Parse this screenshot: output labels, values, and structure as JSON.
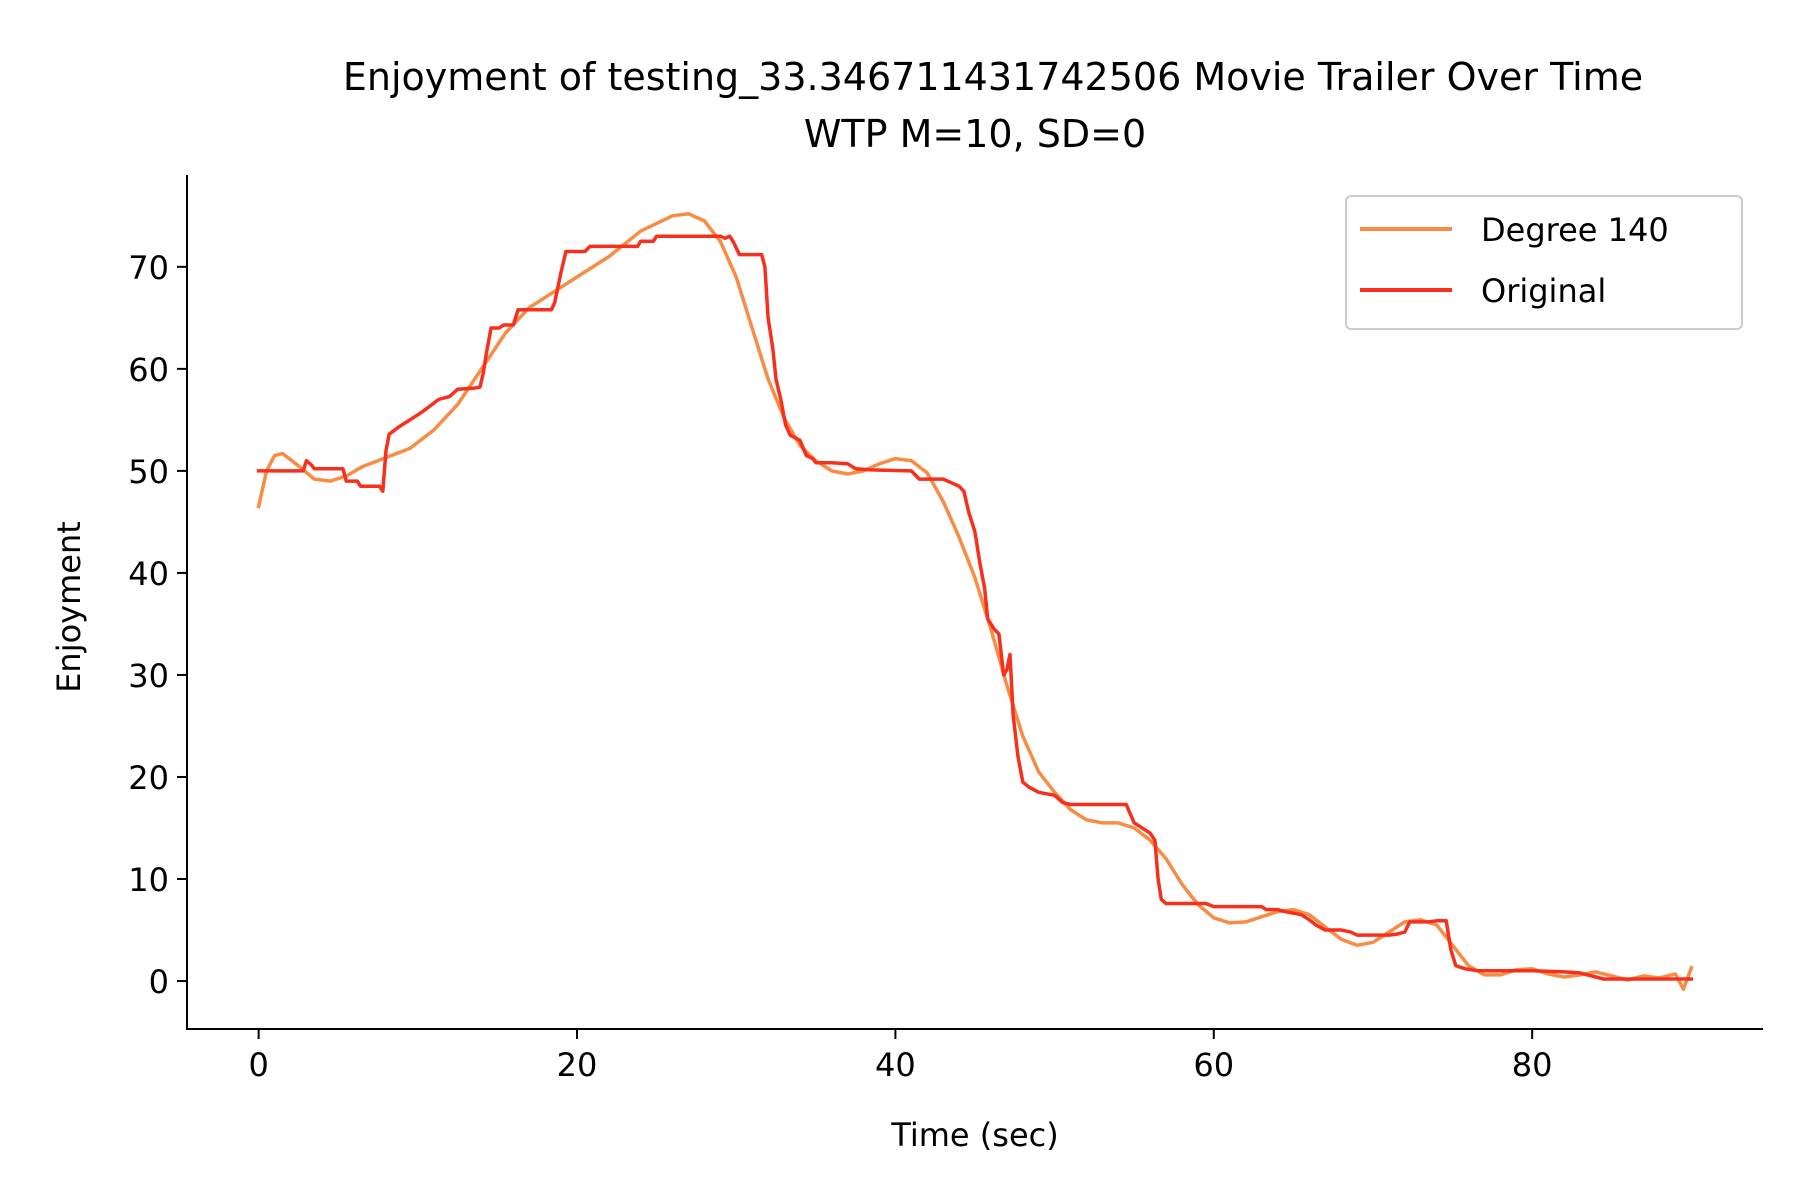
{
  "chart_data": {
    "type": "line",
    "title": "Enjoyment of testing_33.346711431742506 Movie Trailer Over Time",
    "subtitle": "WTP M=10, SD=0",
    "xlabel": "Time (sec)",
    "ylabel": "Enjoyment",
    "xlim": [
      -4.5,
      94.5
    ],
    "ylim": [
      -4.7,
      79
    ],
    "x_ticks": [
      0,
      20,
      40,
      60,
      80
    ],
    "y_ticks": [
      0,
      10,
      20,
      30,
      40,
      50,
      60,
      70
    ],
    "x_tick_labels": [
      "0",
      "20",
      "40",
      "60",
      "80"
    ],
    "y_tick_labels": [
      "0",
      "10",
      "20",
      "30",
      "40",
      "50",
      "60",
      "70"
    ],
    "grid": false,
    "legend_position": "upper right",
    "series": [
      {
        "name": "Degree 140",
        "color": "#f98c45",
        "points": [
          [
            0,
            46.5
          ],
          [
            0.5,
            50
          ],
          [
            1,
            51.5
          ],
          [
            1.5,
            51.7
          ],
          [
            2.5,
            50.5
          ],
          [
            3.5,
            49.2
          ],
          [
            4.5,
            49
          ],
          [
            5.5,
            49.5
          ],
          [
            6.5,
            50.4
          ],
          [
            8,
            51.3
          ],
          [
            9.5,
            52.2
          ],
          [
            11,
            54
          ],
          [
            12.5,
            56.5
          ],
          [
            14,
            60
          ],
          [
            15.5,
            63.5
          ],
          [
            17,
            66
          ],
          [
            18.5,
            67.5
          ],
          [
            20,
            69
          ],
          [
            22,
            71
          ],
          [
            24,
            73.5
          ],
          [
            26,
            75
          ],
          [
            27,
            75.2
          ],
          [
            28,
            74.5
          ],
          [
            29,
            72.5
          ],
          [
            30,
            69
          ],
          [
            31,
            64
          ],
          [
            32,
            59
          ],
          [
            33,
            55.2
          ],
          [
            34,
            52.5
          ],
          [
            35,
            51
          ],
          [
            36,
            50
          ],
          [
            37,
            49.7
          ],
          [
            38,
            50
          ],
          [
            39,
            50.7
          ],
          [
            40,
            51.2
          ],
          [
            41,
            51
          ],
          [
            42,
            49.8
          ],
          [
            43,
            47
          ],
          [
            44,
            43.5
          ],
          [
            45,
            39.5
          ],
          [
            46,
            34.5
          ],
          [
            47,
            29
          ],
          [
            48,
            24
          ],
          [
            49,
            20.5
          ],
          [
            50,
            18.5
          ],
          [
            51,
            16.8
          ],
          [
            52,
            15.8
          ],
          [
            53,
            15.5
          ],
          [
            54,
            15.5
          ],
          [
            55,
            15
          ],
          [
            56,
            13.8
          ],
          [
            57,
            12
          ],
          [
            58,
            9.5
          ],
          [
            59,
            7.5
          ],
          [
            60,
            6.2
          ],
          [
            61,
            5.7
          ],
          [
            62,
            5.8
          ],
          [
            63,
            6.3
          ],
          [
            64,
            6.8
          ],
          [
            65,
            7
          ],
          [
            66,
            6.5
          ],
          [
            67,
            5.3
          ],
          [
            68,
            4.1
          ],
          [
            69,
            3.5
          ],
          [
            70,
            3.8
          ],
          [
            71,
            4.8
          ],
          [
            72,
            5.8
          ],
          [
            73,
            6
          ],
          [
            74,
            5.5
          ],
          [
            75,
            3.5
          ],
          [
            76,
            1.5
          ],
          [
            77,
            0.6
          ],
          [
            78,
            0.6
          ],
          [
            79,
            1.1
          ],
          [
            80,
            1.2
          ],
          [
            81,
            0.7
          ],
          [
            82,
            0.4
          ],
          [
            83,
            0.6
          ],
          [
            84,
            0.9
          ],
          [
            85,
            0.5
          ],
          [
            86,
            0.1
          ],
          [
            87,
            0.5
          ],
          [
            88,
            0.3
          ],
          [
            89,
            0.7
          ],
          [
            89.5,
            -0.8
          ],
          [
            90,
            1.3
          ]
        ]
      },
      {
        "name": "Original",
        "color": "#f6301d",
        "points": [
          [
            0,
            50
          ],
          [
            2.8,
            50
          ],
          [
            3,
            51
          ],
          [
            3.3,
            50.6
          ],
          [
            3.5,
            50.2
          ],
          [
            5.3,
            50.2
          ],
          [
            5.5,
            49
          ],
          [
            6.2,
            49
          ],
          [
            6.4,
            48.5
          ],
          [
            7.6,
            48.5
          ],
          [
            7.8,
            48
          ],
          [
            8,
            52
          ],
          [
            8.2,
            53.6
          ],
          [
            8.8,
            54.3
          ],
          [
            9.5,
            55
          ],
          [
            10.2,
            55.7
          ],
          [
            10.8,
            56.4
          ],
          [
            11.3,
            57
          ],
          [
            12,
            57.3
          ],
          [
            12.5,
            58
          ],
          [
            13.5,
            58.1
          ],
          [
            13.9,
            58.2
          ],
          [
            14.1,
            59.5
          ],
          [
            14.3,
            61.5
          ],
          [
            14.6,
            64
          ],
          [
            15.1,
            64
          ],
          [
            15.4,
            64.3
          ],
          [
            16,
            64.3
          ],
          [
            16.3,
            65.8
          ],
          [
            18.4,
            65.8
          ],
          [
            18.6,
            66.5
          ],
          [
            18.8,
            68
          ],
          [
            19,
            69.5
          ],
          [
            19.3,
            71.5
          ],
          [
            20.5,
            71.5
          ],
          [
            20.8,
            72
          ],
          [
            23.8,
            72
          ],
          [
            24,
            72.5
          ],
          [
            24.8,
            72.5
          ],
          [
            25,
            73
          ],
          [
            29,
            73
          ],
          [
            29.3,
            72.8
          ],
          [
            29.6,
            73
          ],
          [
            29.8,
            72.5
          ],
          [
            30.2,
            71.2
          ],
          [
            31.6,
            71.2
          ],
          [
            31.8,
            70
          ],
          [
            32,
            65
          ],
          [
            32.3,
            62
          ],
          [
            32.5,
            59
          ],
          [
            32.8,
            57
          ],
          [
            33.1,
            54.5
          ],
          [
            33.4,
            53.5
          ],
          [
            34,
            53
          ],
          [
            34.4,
            51.5
          ],
          [
            34.8,
            51.2
          ],
          [
            35,
            50.8
          ],
          [
            36,
            50.8
          ],
          [
            37,
            50.7
          ],
          [
            37.5,
            50.2
          ],
          [
            38.5,
            50.1
          ],
          [
            41,
            50
          ],
          [
            41.5,
            49.2
          ],
          [
            43,
            49.2
          ],
          [
            44,
            48.5
          ],
          [
            44.3,
            48
          ],
          [
            44.6,
            46
          ],
          [
            45,
            44
          ],
          [
            45.3,
            41
          ],
          [
            45.6,
            38.5
          ],
          [
            45.8,
            35.5
          ],
          [
            46.2,
            34.5
          ],
          [
            46.5,
            34
          ],
          [
            46.8,
            30
          ],
          [
            47,
            30.5
          ],
          [
            47.2,
            32
          ],
          [
            47.4,
            26
          ],
          [
            47.7,
            22
          ],
          [
            48,
            19.5
          ],
          [
            48.4,
            19
          ],
          [
            49,
            18.5
          ],
          [
            50,
            18.2
          ],
          [
            50.5,
            17.5
          ],
          [
            51,
            17.3
          ],
          [
            54.5,
            17.3
          ],
          [
            55,
            15.5
          ],
          [
            56,
            14.5
          ],
          [
            56.3,
            13.8
          ],
          [
            56.5,
            10
          ],
          [
            56.7,
            8
          ],
          [
            57,
            7.6
          ],
          [
            58,
            7.6
          ],
          [
            59.5,
            7.6
          ],
          [
            60,
            7.3
          ],
          [
            63,
            7.3
          ],
          [
            63.3,
            7
          ],
          [
            64,
            7
          ],
          [
            64.5,
            6.8
          ],
          [
            65.5,
            6.5
          ],
          [
            66,
            6
          ],
          [
            66.4,
            5.5
          ],
          [
            67,
            5
          ],
          [
            68,
            5
          ],
          [
            68.6,
            4.8
          ],
          [
            69,
            4.5
          ],
          [
            70,
            4.5
          ],
          [
            71,
            4.5
          ],
          [
            71.5,
            4.6
          ],
          [
            72,
            4.8
          ],
          [
            72.3,
            5.8
          ],
          [
            73.5,
            5.8
          ],
          [
            74,
            5.9
          ],
          [
            74.6,
            5.9
          ],
          [
            74.9,
            3
          ],
          [
            75.2,
            1.5
          ],
          [
            75.8,
            1.2
          ],
          [
            76.6,
            1
          ],
          [
            80,
            1
          ],
          [
            82,
            0.9
          ],
          [
            83,
            0.8
          ],
          [
            84,
            0.4
          ],
          [
            84.5,
            0.2
          ],
          [
            88,
            0.2
          ],
          [
            90,
            0.2
          ]
        ]
      }
    ]
  }
}
